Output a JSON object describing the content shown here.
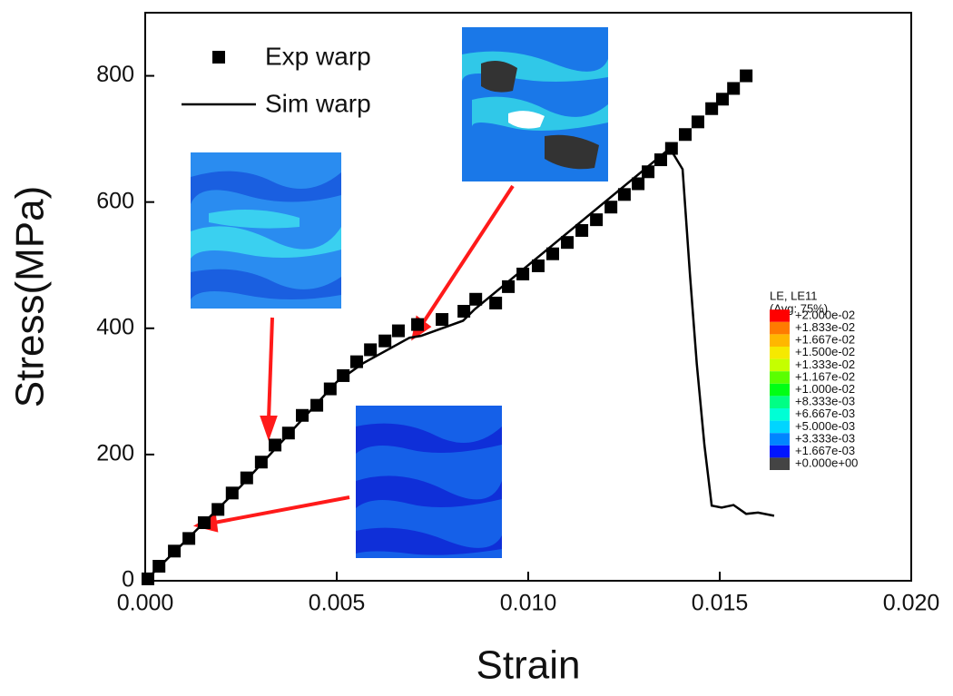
{
  "chart_data": {
    "type": "scatter",
    "x_label": "Strain",
    "y_label": "Stress(MPa)",
    "xlim": [
      0,
      0.02
    ],
    "ylim": [
      0,
      900
    ],
    "xticks": [
      {
        "value": 0,
        "label": "0.000"
      },
      {
        "value": 0.005,
        "label": "0.005"
      },
      {
        "value": 0.01,
        "label": "0.010"
      },
      {
        "value": 0.015,
        "label": "0.015"
      },
      {
        "value": 0.02,
        "label": "0.020"
      }
    ],
    "yticks": [
      0,
      200,
      400,
      600,
      800
    ],
    "series": [
      {
        "name": "Exp warp",
        "color": "#000000",
        "mode": "markers",
        "x": [
          7e-05,
          0.00036,
          0.00076,
          0.00114,
          0.00154,
          0.0019,
          0.00227,
          0.00265,
          0.00303,
          0.00339,
          0.00374,
          0.0041,
          0.00448,
          0.00483,
          0.00517,
          0.00552,
          0.00588,
          0.00626,
          0.00661,
          0.00711,
          0.00775,
          0.00832,
          0.00863,
          0.00915,
          0.00948,
          0.00986,
          0.01026,
          0.01064,
          0.01102,
          0.0114,
          0.01178,
          0.01216,
          0.01251,
          0.01287,
          0.01313,
          0.01346,
          0.01374,
          0.0141,
          0.01443,
          0.01479,
          0.01507,
          0.01536,
          0.01569
        ],
        "values": [
          3,
          23,
          47,
          67,
          92,
          113,
          139,
          163,
          188,
          215,
          234,
          262,
          278,
          304,
          325,
          347,
          366,
          380,
          396,
          406,
          414,
          427,
          446,
          440,
          466,
          486,
          499,
          518,
          536,
          555,
          572,
          592,
          612,
          629,
          648,
          667,
          685,
          707,
          727,
          748,
          763,
          780,
          800
        ]
      },
      {
        "name": "Sim warp",
        "color": "#000000",
        "mode": "line",
        "x": [
          0,
          0.0025,
          0.005,
          0.0057,
          0.0069,
          0.0072,
          0.0083,
          0.0086,
          0.0137,
          0.01384,
          0.01403,
          0.01422,
          0.0144,
          0.0146,
          0.01479,
          0.01505,
          0.01536,
          0.01569,
          0.016,
          0.01642
        ],
        "values": [
          0,
          150,
          315,
          345,
          385,
          388,
          412,
          430,
          685,
          671,
          652,
          487,
          344,
          215,
          119,
          116,
          120,
          106,
          108,
          103
        ]
      }
    ],
    "colorbar": {
      "title": [
        "LE, LE11",
        "(Avg: 75%)"
      ],
      "labels": [
        "+2.000e-02",
        "+1.833e-02",
        "+1.667e-02",
        "+1.500e-02",
        "+1.333e-02",
        "+1.167e-02",
        "+1.000e-02",
        "+8.333e-03",
        "+6.667e-03",
        "+5.000e-03",
        "+3.333e-03",
        "+1.667e-03",
        "+0.000e+00"
      ],
      "colors": [
        "#ff0000",
        "#ff7b00",
        "#ffb700",
        "#f6e900",
        "#c5ff00",
        "#5aff00",
        "#00ff15",
        "#00ff85",
        "#00ffd5",
        "#00d5ff",
        "#0085ff",
        "#0015ff",
        "#444444"
      ]
    }
  }
}
